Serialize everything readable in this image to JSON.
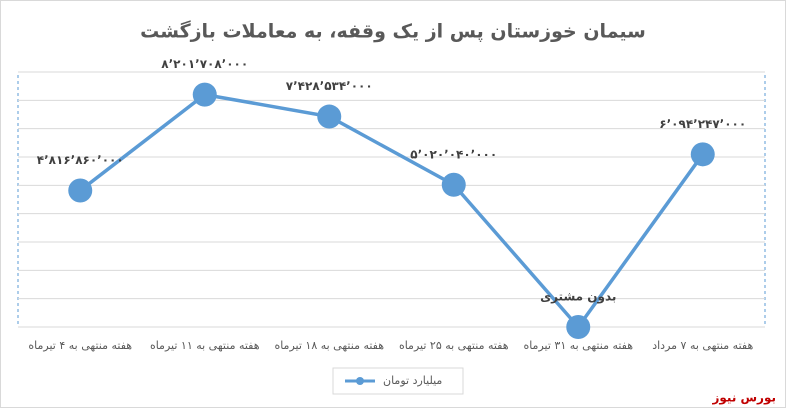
{
  "chart_data": {
    "type": "line",
    "title": "سیمان خوزستان پس از یک وقفه، به معاملات بازگشت",
    "categories": [
      "هفته منتهی به ۴ تیرماه",
      "هفته منتهی به ۱۱ تیرماه",
      "هفته منتهی به ۱۸ تیرماه",
      "هفته منتهی به ۲۵ تیرماه",
      "هفته منتهی به ۳۱ تیرماه",
      "هفته منتهی به ۷ مرداد"
    ],
    "series": [
      {
        "name": "میلیارد تومان",
        "color": "#5b9bd5",
        "values": [
          4816860000,
          8201708000,
          7428534000,
          5020040000,
          0,
          6094247000
        ],
        "value_labels": [
          "۴٬۸۱۶٬۸۶۰٬۰۰۰",
          "۸٬۲۰۱٬۷۰۸٬۰۰۰",
          "۷٬۴۲۸٬۵۳۴٬۰۰۰",
          "۵٬۰۲۰٬۰۴۰٬۰۰۰",
          "بدون مشتری",
          "۶٬۰۹۴٬۲۴۷٬۰۰۰"
        ]
      }
    ],
    "ylim": [
      0,
      9000000000
    ],
    "yticks": [
      0,
      1000000000,
      2000000000,
      3000000000,
      4000000000,
      5000000000,
      6000000000,
      7000000000,
      8000000000,
      9000000000
    ],
    "grid": true,
    "legend": "bottom",
    "watermark": "بورس نیوز"
  }
}
